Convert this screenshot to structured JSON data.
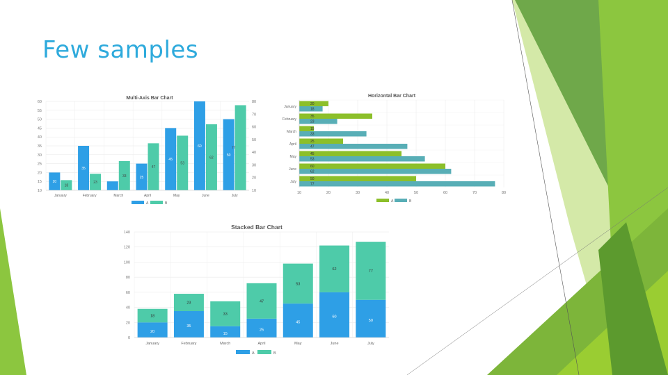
{
  "slide": {
    "title": "Few samples"
  },
  "colors": {
    "A": "#2e9fe6",
    "B": "#4ecba9",
    "A_h": "#8cbf2a",
    "B_h": "#58aeb6",
    "title": "#2eaadc"
  },
  "chart_data": [
    {
      "type": "bar",
      "title": "Multi-Axis Bar Chart",
      "categories": [
        "January",
        "February",
        "March",
        "April",
        "May",
        "June",
        "July"
      ],
      "series": [
        {
          "name": "A",
          "values": [
            20,
            35,
            15,
            25,
            45,
            60,
            50
          ]
        },
        {
          "name": "B",
          "values": [
            18,
            23,
            33,
            47,
            53,
            62,
            77
          ]
        }
      ],
      "left_axis": {
        "ticks": [
          10,
          15,
          20,
          25,
          30,
          35,
          40,
          45,
          50,
          55,
          60
        ],
        "ylim": [
          10,
          60
        ]
      },
      "right_axis": {
        "ticks": [
          10,
          20,
          30,
          40,
          50,
          60,
          70,
          80
        ],
        "ylim": [
          10,
          80
        ]
      },
      "legend": [
        "A",
        "B"
      ],
      "value_labels": {
        "A": [
          "20",
          "35",
          "",
          "25",
          "45",
          "60",
          "50"
        ],
        "B": [
          "18",
          "23",
          "33",
          "47",
          "53",
          "62",
          "77"
        ]
      }
    },
    {
      "type": "bar",
      "orientation": "horizontal",
      "title": "Horizontal Bar Chart",
      "categories": [
        "January",
        "February",
        "March",
        "April",
        "May",
        "June",
        "July"
      ],
      "series": [
        {
          "name": "A",
          "values": [
            20,
            35,
            15,
            25,
            45,
            60,
            50
          ]
        },
        {
          "name": "B",
          "values": [
            18,
            23,
            33,
            47,
            53,
            62,
            77
          ]
        }
      ],
      "x_ticks": [
        10,
        20,
        30,
        40,
        50,
        60,
        70,
        80
      ],
      "xlim": [
        10,
        80
      ],
      "legend": [
        "A",
        "B"
      ]
    },
    {
      "type": "bar",
      "stacked": true,
      "title": "Stacked Bar Chart",
      "categories": [
        "January",
        "February",
        "March",
        "April",
        "May",
        "June",
        "July"
      ],
      "series": [
        {
          "name": "A",
          "values": [
            20,
            35,
            15,
            25,
            45,
            60,
            50
          ]
        },
        {
          "name": "B",
          "values": [
            18,
            23,
            33,
            47,
            53,
            62,
            77
          ]
        }
      ],
      "y_ticks": [
        0,
        20,
        40,
        60,
        80,
        100,
        120,
        140
      ],
      "ylim": [
        0,
        140
      ],
      "legend": [
        "A",
        "B"
      ]
    }
  ]
}
